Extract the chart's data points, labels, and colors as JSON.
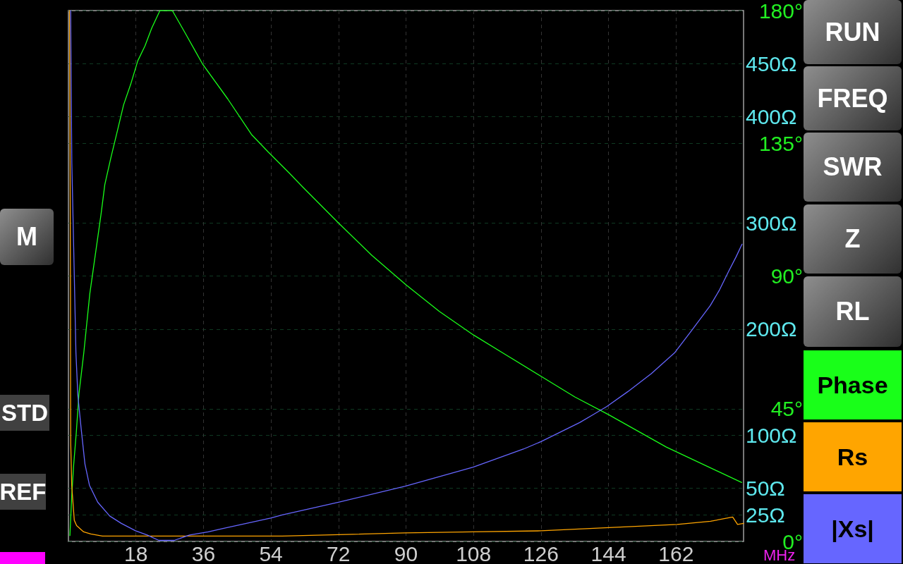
{
  "chart_data": {
    "type": "line",
    "xlabel": "MHz",
    "xlim": [
      0,
      180
    ],
    "xticks": [
      18,
      36,
      54,
      72,
      90,
      108,
      126,
      144,
      162
    ],
    "ylim": [
      0,
      180
    ],
    "yticks": [
      {
        "value": 0,
        "label": "0°"
      },
      {
        "value": 45,
        "label": "45°"
      },
      {
        "value": 90,
        "label": "90°"
      },
      {
        "value": 135,
        "label": "135°"
      },
      {
        "value": 180,
        "label": "180°"
      }
    ],
    "y2lim": [
      0,
      500
    ],
    "y2ticks": [
      {
        "value": 25,
        "label": "25Ω"
      },
      {
        "value": 50,
        "label": "50Ω"
      },
      {
        "value": 100,
        "label": "100Ω"
      },
      {
        "value": 200,
        "label": "200Ω"
      },
      {
        "value": 300,
        "label": "300Ω"
      },
      {
        "value": 400,
        "label": "400Ω"
      },
      {
        "value": 450,
        "label": "450Ω"
      }
    ],
    "grid": true,
    "legend": "right",
    "marker": "none",
    "annotations": [
      "RUN",
      "FREQ",
      "SWR",
      "Z",
      "RL",
      "M",
      "STD",
      "REF"
    ],
    "series": [
      {
        "name": "Phase",
        "color": "#19ff19",
        "x": [
          0.4,
          0.9,
          1.4,
          2.1,
          2.8,
          4.1,
          5.7,
          8.7,
          9.7,
          11.3,
          13.2,
          14.7,
          16.6,
          18.5,
          20.4,
          22.2,
          24.4,
          27.7,
          31.3,
          33.5,
          35.7,
          42.5,
          48.8,
          53.3,
          58.8,
          62.6,
          72,
          80.9,
          90,
          98.9,
          108,
          117,
          126,
          135,
          144,
          159.4,
          179.5
        ],
        "values": [
          2,
          16,
          26,
          37,
          50,
          64,
          84,
          111,
          121,
          130,
          140,
          148,
          155,
          163,
          168,
          174,
          180,
          180,
          172,
          167,
          162,
          150,
          138,
          132,
          125,
          120,
          108,
          97,
          87,
          78,
          70,
          63,
          56,
          49,
          43,
          32,
          20
        ]
      },
      {
        "name": "Rs",
        "color": "#ffa500",
        "axis": "y2",
        "x": [
          0.3,
          0.45,
          0.55,
          0.58,
          0.62,
          0.87,
          1.56,
          2.18,
          4.06,
          5.94,
          9.08,
          32.6,
          57.0,
          89.8,
          107.9,
          126.0,
          144.1,
          162.3,
          171.2,
          177.1,
          178.4,
          180
        ],
        "values": [
          500,
          358,
          237,
          134,
          92,
          53,
          20,
          15,
          9,
          7,
          5,
          5,
          5,
          8,
          9,
          10,
          13,
          16,
          19,
          23,
          16,
          17
        ]
      },
      {
        "name": "|Xs|",
        "color": "#6666ff",
        "axis": "y2",
        "x": [
          0.6,
          0.7,
          0.9,
          1.4,
          2.0,
          2.5,
          3.4,
          4.4,
          5.6,
          7.8,
          11.0,
          14.1,
          17.9,
          21.0,
          24.1,
          28.2,
          32.3,
          37.3,
          41.0,
          53.9,
          57.0,
          72,
          89.8,
          107.9,
          121.3,
          126.0,
          136.3,
          139.7,
          143.5,
          149.1,
          155.4,
          161.7,
          166.0,
          169.2,
          171.1,
          173.6,
          176.1,
          178.0,
          179.6
        ],
        "values": [
          500,
          444,
          357,
          277,
          178,
          138,
          106,
          73,
          53,
          37,
          24,
          17,
          10,
          6,
          1,
          1,
          6,
          9,
          12,
          22,
          25,
          37,
          52,
          70,
          87,
          94,
          112,
          119,
          127,
          141,
          158,
          178,
          198,
          213,
          222,
          237,
          255,
          268,
          280
        ]
      }
    ]
  }
}
